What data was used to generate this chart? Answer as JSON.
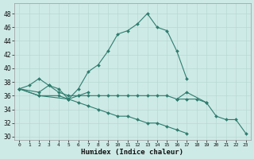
{
  "xlabel": "Humidex (Indice chaleur)",
  "xlim": [
    -0.5,
    23.5
  ],
  "ylim": [
    29.5,
    49.5
  ],
  "xticks": [
    0,
    1,
    2,
    3,
    4,
    5,
    6,
    7,
    8,
    9,
    10,
    11,
    12,
    13,
    14,
    15,
    16,
    17,
    18,
    19,
    20,
    21,
    22,
    23
  ],
  "yticks": [
    30,
    32,
    34,
    36,
    38,
    40,
    42,
    44,
    46,
    48
  ],
  "background_color": "#ceeae6",
  "grid_color": "#b8d8d4",
  "line_color": "#2e7d6e",
  "lines": [
    [
      37.0,
      37.5,
      38.5,
      37.5,
      37.0,
      35.5,
      37.0,
      39.5,
      40.5,
      42.5,
      45.0,
      45.5,
      46.5,
      48.0,
      46.0,
      45.5,
      42.5,
      38.5,
      null,
      null,
      null,
      null,
      null,
      null
    ],
    [
      37.0,
      null,
      36.5,
      37.5,
      36.5,
      36.0,
      36.0,
      36.5,
      null,
      null,
      null,
      null,
      null,
      null,
      null,
      null,
      null,
      null,
      null,
      null,
      null,
      null,
      null,
      null
    ],
    [
      37.0,
      null,
      36.0,
      null,
      36.0,
      35.5,
      36.0,
      36.0,
      36.0,
      36.0,
      36.0,
      36.0,
      36.0,
      36.0,
      36.0,
      36.0,
      35.5,
      35.5,
      35.5,
      35.0,
      null,
      null,
      null,
      null
    ],
    [
      37.0,
      null,
      36.0,
      null,
      null,
      35.5,
      35.0,
      34.5,
      34.0,
      33.5,
      33.0,
      33.0,
      32.5,
      32.0,
      32.0,
      31.5,
      31.0,
      30.5,
      null,
      null,
      null,
      null,
      null,
      null
    ],
    [
      null,
      null,
      null,
      null,
      null,
      null,
      null,
      null,
      null,
      null,
      null,
      null,
      null,
      null,
      null,
      null,
      35.5,
      36.5,
      null,
      35.0,
      33.0,
      32.5,
      32.5,
      30.5
    ]
  ]
}
